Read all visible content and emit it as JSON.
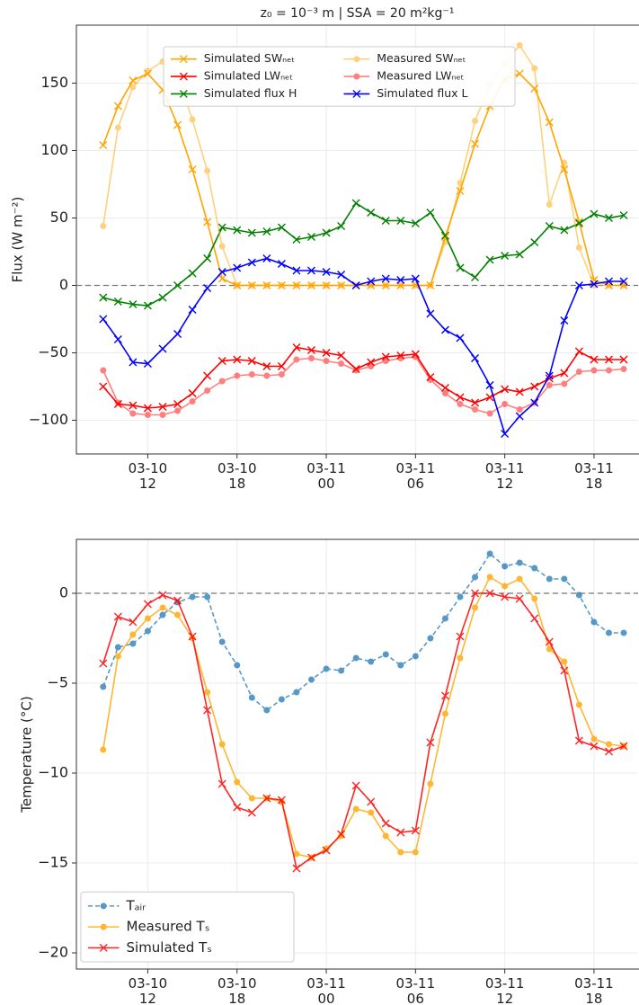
{
  "chart_data": [
    {
      "type": "line",
      "title": "z₀ = 10⁻³ m  |  SSA = 20 m²kg⁻¹",
      "y_label": "Flux (W m⁻²)",
      "x": [
        "03-10 09",
        "03-10 10",
        "03-10 11",
        "03-10 12",
        "03-10 13",
        "03-10 14",
        "03-10 15",
        "03-10 16",
        "03-10 17",
        "03-10 18",
        "03-10 19",
        "03-10 20",
        "03-10 21",
        "03-10 22",
        "03-10 23",
        "03-11 00",
        "03-11 01",
        "03-11 02",
        "03-11 03",
        "03-11 04",
        "03-11 05",
        "03-11 06",
        "03-11 07",
        "03-11 08",
        "03-11 09",
        "03-11 10",
        "03-11 11",
        "03-11 12",
        "03-11 13",
        "03-11 14",
        "03-11 15",
        "03-11 16",
        "03-11 17",
        "03-11 18",
        "03-11 19",
        "03-11 20"
      ],
      "xticks": [
        {
          "value": "03-10 12",
          "label": "03-10\n12"
        },
        {
          "value": "03-10 18",
          "label": "03-10\n18"
        },
        {
          "value": "03-11 00",
          "label": "03-11\n00"
        },
        {
          "value": "03-11 06",
          "label": "03-11\n06"
        },
        {
          "value": "03-11 12",
          "label": "03-11\n12"
        },
        {
          "value": "03-11 18",
          "label": "03-11\n18"
        }
      ],
      "ylim": [
        -125,
        193
      ],
      "yticks": [
        {
          "value": -100,
          "label": "−100"
        },
        {
          "value": -50,
          "label": "−50"
        },
        0,
        50,
        100,
        150
      ],
      "grid": true,
      "reference_line": 0,
      "legend": "upper center",
      "legend_columns": 2,
      "series": [
        {
          "name": "Simulated SWₙₑₜ",
          "color": "#ffa500",
          "marker": "x",
          "linestyle": "solid",
          "alpha": 1,
          "values": [
            104,
            133,
            152,
            157,
            145,
            119,
            86,
            47,
            5,
            0,
            0,
            0,
            0,
            0,
            0,
            0,
            0,
            0,
            0,
            0,
            0,
            0,
            0,
            36,
            70,
            105,
            133,
            153,
            157,
            146,
            121,
            86,
            47,
            4,
            0,
            0
          ]
        },
        {
          "name": "Simulated LWₙₑₜ",
          "color": "#ff0000",
          "marker": "x",
          "linestyle": "solid",
          "alpha": 1,
          "values": [
            -75,
            -88,
            -89,
            -91,
            -90,
            -88,
            -80,
            -67,
            -56,
            -55,
            -56,
            -60,
            -60,
            -46,
            -48,
            -50,
            -52,
            -62,
            -57,
            -53,
            -52,
            -51,
            -68,
            -76,
            -83,
            -87,
            -83,
            -77,
            -79,
            -75,
            -69,
            -65,
            -49,
            -55,
            -55,
            -55
          ]
        },
        {
          "name": "Simulated flux H",
          "color": "#008000",
          "marker": "x",
          "linestyle": "solid",
          "alpha": 1,
          "values": [
            -9,
            -12,
            -14,
            -15,
            -9,
            0,
            9,
            20,
            43,
            41,
            39,
            40,
            43,
            34,
            36,
            39,
            44,
            61,
            54,
            48,
            48,
            46,
            54,
            37,
            13,
            6,
            19,
            22,
            23,
            32,
            44,
            41,
            46,
            53,
            50,
            52
          ]
        },
        {
          "name": "Measured SWₙₑₜ",
          "color": "#ffa500",
          "marker": "o",
          "linestyle": "solid",
          "alpha": 0.5,
          "values": [
            44,
            117,
            147,
            159,
            166,
            155,
            123,
            85,
            29,
            0,
            0,
            0,
            0,
            0,
            0,
            0,
            0,
            0,
            0,
            0,
            0,
            0,
            0,
            32,
            76,
            122,
            149,
            164,
            178,
            161,
            60,
            91,
            28,
            0,
            0,
            0
          ]
        },
        {
          "name": "Measured LWₙₑₜ",
          "color": "#ff0000",
          "marker": "o",
          "linestyle": "solid",
          "alpha": 0.5,
          "values": [
            -63,
            -87,
            -95,
            -96,
            -96,
            -93,
            -86,
            -78,
            -71,
            -67,
            -66,
            -67,
            -66,
            -55,
            -54,
            -56,
            -58,
            -63,
            -60,
            -56,
            -54,
            -53,
            -70,
            -80,
            -88,
            -92,
            -95,
            -88,
            -92,
            -87,
            -74,
            -73,
            -64,
            -63,
            -63,
            -62
          ]
        },
        {
          "name": "Simulated flux L",
          "color": "#0000ff",
          "marker": "x",
          "linestyle": "solid",
          "alpha": 1,
          "values": [
            -25,
            -40,
            -57,
            -58,
            -47,
            -36,
            -18,
            -2,
            10,
            13,
            17,
            20,
            16,
            11,
            11,
            10,
            8,
            0,
            3,
            5,
            4,
            5,
            -21,
            -33,
            -39,
            -54,
            -74,
            -110,
            -97,
            -87,
            -67,
            -26,
            0,
            1,
            3,
            3
          ]
        }
      ]
    },
    {
      "type": "line",
      "y_label": "Temperature (°C)",
      "x": [
        "03-10 09",
        "03-10 10",
        "03-10 11",
        "03-10 12",
        "03-10 13",
        "03-10 14",
        "03-10 15",
        "03-10 16",
        "03-10 17",
        "03-10 18",
        "03-10 19",
        "03-10 20",
        "03-10 21",
        "03-10 22",
        "03-10 23",
        "03-11 00",
        "03-11 01",
        "03-11 02",
        "03-11 03",
        "03-11 04",
        "03-11 05",
        "03-11 06",
        "03-11 07",
        "03-11 08",
        "03-11 09",
        "03-11 10",
        "03-11 11",
        "03-11 12",
        "03-11 13",
        "03-11 14",
        "03-11 15",
        "03-11 16",
        "03-11 17",
        "03-11 18",
        "03-11 19",
        "03-11 20"
      ],
      "xticks": [
        {
          "value": "03-10 12",
          "label": "03-10\n12"
        },
        {
          "value": "03-10 18",
          "label": "03-10\n18"
        },
        {
          "value": "03-11 00",
          "label": "03-11\n00"
        },
        {
          "value": "03-11 06",
          "label": "03-11\n06"
        },
        {
          "value": "03-11 12",
          "label": "03-11\n12"
        },
        {
          "value": "03-11 18",
          "label": "03-11\n18"
        }
      ],
      "ylim": [
        -20.9,
        3
      ],
      "yticks": [
        {
          "value": -20,
          "label": "−20"
        },
        {
          "value": -15,
          "label": "−15"
        },
        {
          "value": -10,
          "label": "−10"
        },
        {
          "value": -5,
          "label": "−5"
        },
        0
      ],
      "grid": true,
      "reference_line": 0,
      "legend": "lower left",
      "legend_columns": 1,
      "series": [
        {
          "name": "Tₐᵢᵣ",
          "color": "#1f77b4",
          "marker": "o",
          "linestyle": "dashed",
          "alpha": 0.75,
          "values": [
            -5.2,
            -3.0,
            -2.8,
            -2.1,
            -1.2,
            -0.5,
            -0.2,
            -0.2,
            -2.7,
            -4.0,
            -5.8,
            -6.5,
            -5.9,
            -5.5,
            -4.8,
            -4.2,
            -4.3,
            -3.6,
            -3.8,
            -3.4,
            -4.0,
            -3.5,
            -2.5,
            -1.4,
            -0.2,
            0.9,
            2.2,
            1.5,
            1.7,
            1.4,
            0.8,
            0.8,
            -0.1,
            -1.6,
            -2.2,
            -2.2
          ]
        },
        {
          "name": "Measured Tₛ",
          "color": "#ffa500",
          "marker": "o",
          "linestyle": "solid",
          "alpha": 0.8,
          "values": [
            -8.7,
            -3.5,
            -2.3,
            -1.4,
            -0.8,
            -1.2,
            -2.5,
            -5.5,
            -8.4,
            -10.5,
            -11.4,
            -11.4,
            -11.6,
            -14.5,
            -14.7,
            -14.2,
            -13.5,
            -12.0,
            -12.2,
            -13.5,
            -14.4,
            -14.4,
            -10.6,
            -6.7,
            -3.6,
            -0.8,
            0.9,
            0.4,
            0.8,
            -0.3,
            -3.1,
            -3.8,
            -6.2,
            -8.1,
            -8.4,
            -8.5
          ]
        },
        {
          "name": "Simulated Tₛ",
          "color": "#ff0000",
          "marker": "x",
          "linestyle": "solid",
          "alpha": 0.85,
          "values": [
            -3.9,
            -1.3,
            -1.6,
            -0.6,
            -0.1,
            -0.4,
            -2.4,
            -6.5,
            -10.6,
            -11.9,
            -12.2,
            -11.4,
            -11.5,
            -15.3,
            -14.7,
            -14.3,
            -13.4,
            -10.7,
            -11.6,
            -12.8,
            -13.3,
            -13.2,
            -8.3,
            -5.7,
            -2.4,
            0,
            0,
            -0.2,
            -0.3,
            -1.4,
            -2.7,
            -4.3,
            -8.2,
            -8.5,
            -8.8,
            -8.5
          ]
        }
      ]
    }
  ]
}
